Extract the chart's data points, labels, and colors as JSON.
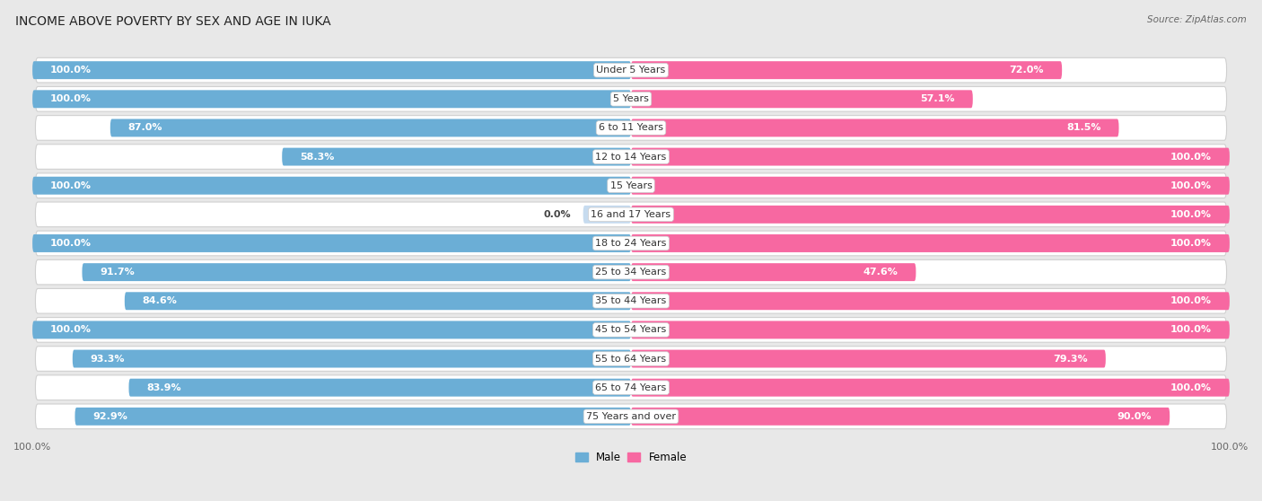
{
  "title": "INCOME ABOVE POVERTY BY SEX AND AGE IN IUKA",
  "source": "Source: ZipAtlas.com",
  "categories": [
    "Under 5 Years",
    "5 Years",
    "6 to 11 Years",
    "12 to 14 Years",
    "15 Years",
    "16 and 17 Years",
    "18 to 24 Years",
    "25 to 34 Years",
    "35 to 44 Years",
    "45 to 54 Years",
    "55 to 64 Years",
    "65 to 74 Years",
    "75 Years and over"
  ],
  "male_values": [
    100.0,
    100.0,
    87.0,
    58.3,
    100.0,
    0.0,
    100.0,
    91.7,
    84.6,
    100.0,
    93.3,
    83.9,
    92.9
  ],
  "female_values": [
    72.0,
    57.1,
    81.5,
    100.0,
    100.0,
    100.0,
    100.0,
    47.6,
    100.0,
    100.0,
    79.3,
    100.0,
    90.0
  ],
  "male_color": "#6baed6",
  "female_color": "#f768a1",
  "male_color_light": "#c6dbef",
  "female_color_light": "#fcc5c0",
  "background_color": "#e8e8e8",
  "bar_background": "#ffffff",
  "max_value": 100.0,
  "title_fontsize": 10,
  "label_fontsize": 8,
  "category_fontsize": 8
}
